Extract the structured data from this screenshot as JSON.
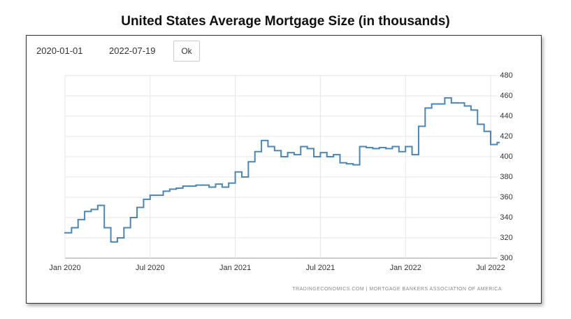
{
  "chart_data": {
    "type": "line",
    "title": "United States Average Mortgage Size (in thousands)",
    "source": "TRADINGECONOMICS.COM  |  MORTGAGE BANKERS ASSOCIATION OF AMERICA",
    "controls": {
      "start_date": "2020-01-01",
      "end_date": "2022-07-19",
      "button": "Ok"
    },
    "categories": [
      "Jan 2020",
      null,
      null,
      null,
      null,
      null,
      null,
      null,
      null,
      null,
      null,
      null,
      null,
      "Jul 2020",
      null,
      null,
      null,
      null,
      null,
      null,
      null,
      null,
      null,
      null,
      null,
      null,
      "Jan 2021",
      null,
      null,
      null,
      null,
      null,
      null,
      null,
      null,
      null,
      null,
      null,
      null,
      "Jul 2021",
      null,
      null,
      null,
      null,
      null,
      null,
      null,
      null,
      null,
      null,
      null,
      null,
      "Jan 2022",
      null,
      null,
      null,
      null,
      null,
      null,
      null,
      null,
      null,
      null,
      null,
      null,
      "Jul 2022",
      null
    ],
    "series": [
      {
        "name": "Average Mortgage Size",
        "color": "#4a86b8",
        "values": [
          325,
          330,
          338,
          346,
          348,
          352,
          330,
          316,
          320,
          330,
          340,
          350,
          358,
          362,
          362,
          366,
          368,
          369,
          371,
          371,
          372,
          372,
          370,
          373,
          370,
          374,
          385,
          380,
          395,
          405,
          416,
          410,
          406,
          400,
          404,
          402,
          410,
          408,
          400,
          404,
          400,
          402,
          394,
          393,
          392,
          410,
          409,
          408,
          409,
          408,
          410,
          405,
          410,
          402,
          430,
          448,
          452,
          452,
          458,
          453,
          453,
          450,
          446,
          432,
          425,
          412,
          414
        ]
      }
    ],
    "ylim": [
      300,
      480
    ],
    "yticks": [
      300,
      320,
      340,
      360,
      380,
      400,
      420,
      440,
      460,
      480
    ],
    "grid": true
  }
}
